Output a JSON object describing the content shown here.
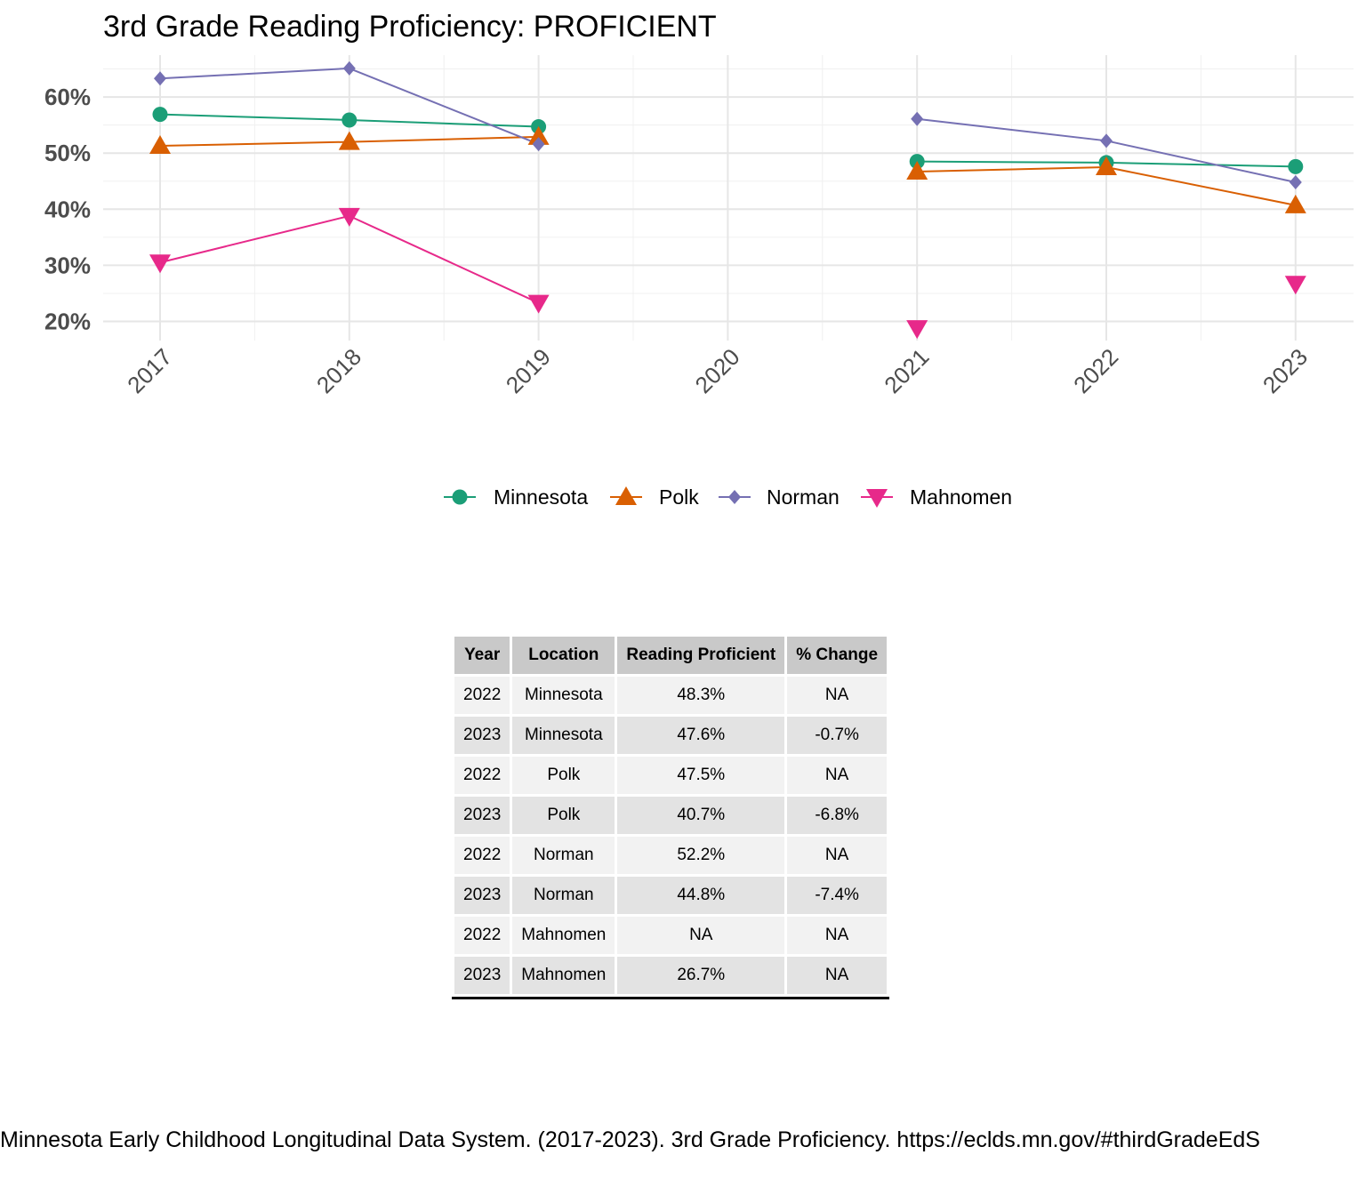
{
  "chart_data": {
    "type": "line",
    "title": "3rd Grade Reading Proficiency: PROFICIENT",
    "x": [
      "2017",
      "2018",
      "2019",
      "2020",
      "2021",
      "2022",
      "2023"
    ],
    "y_ticks": [
      "20%",
      "30%",
      "40%",
      "50%",
      "60%"
    ],
    "ylim": [
      17,
      68
    ],
    "ylabel": "",
    "xlabel": "",
    "grid": true,
    "legend_position": "bottom",
    "series": [
      {
        "name": "Minnesota",
        "color": "#1b9e77",
        "marker": "circle",
        "values": [
          56.9,
          55.9,
          54.7,
          null,
          48.5,
          48.3,
          47.6
        ]
      },
      {
        "name": "Polk",
        "color": "#d95f02",
        "marker": "triangle-up",
        "values": [
          51.3,
          52.0,
          52.9,
          null,
          46.7,
          47.5,
          40.7
        ]
      },
      {
        "name": "Norman",
        "color": "#7570b3",
        "marker": "diamond",
        "values": [
          63.3,
          65.1,
          51.6,
          null,
          56.1,
          52.2,
          44.8
        ]
      },
      {
        "name": "Mahnomen",
        "color": "#e7298a",
        "marker": "triangle-down",
        "values": [
          30.5,
          38.8,
          23.3,
          null,
          18.8,
          null,
          26.7
        ]
      }
    ]
  },
  "table": {
    "headers": [
      "Year",
      "Location",
      "Reading Proficient",
      "% Change"
    ],
    "rows": [
      [
        "2022",
        "Minnesota",
        "48.3%",
        "NA"
      ],
      [
        "2023",
        "Minnesota",
        "47.6%",
        "-0.7%"
      ],
      [
        "2022",
        "Polk",
        "47.5%",
        "NA"
      ],
      [
        "2023",
        "Polk",
        "40.7%",
        "-6.8%"
      ],
      [
        "2022",
        "Norman",
        "52.2%",
        "NA"
      ],
      [
        "2023",
        "Norman",
        "44.8%",
        "-7.4%"
      ],
      [
        "2022",
        "Mahnomen",
        "NA",
        "NA"
      ],
      [
        "2023",
        "Mahnomen",
        "26.7%",
        "NA"
      ]
    ]
  },
  "caption": "Minnesota Early Childhood Longitudinal Data System. (2017-2023). 3rd Grade Proficiency. https://eclds.mn.gov/#thirdGradeEdS"
}
